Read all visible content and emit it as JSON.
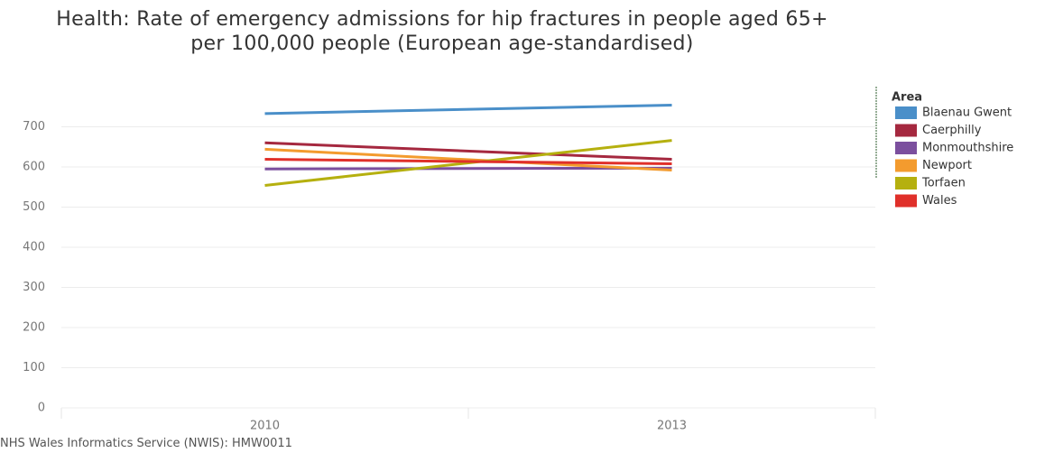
{
  "chart_data": {
    "type": "line",
    "title": "Health: Rate of emergency admissions for hip fractures in people aged 65+ per 100,000 people (European age-standardised)",
    "source": "NHS Wales Informatics Service (NWIS): HMW0011",
    "legend_title": "Area",
    "x": [
      2010,
      2013
    ],
    "xlim": [
      2008.5,
      2014.5
    ],
    "xticks": [
      2010,
      2013
    ],
    "ylim": [
      0,
      800
    ],
    "yticks": [
      0,
      100,
      200,
      300,
      400,
      500,
      600,
      700
    ],
    "grid": true,
    "legend": "right",
    "series": [
      {
        "name": "Blaenau Gwent",
        "color": "#4a8fc9",
        "values": [
          733,
          754
        ]
      },
      {
        "name": "Caerphilly",
        "color": "#a5283f",
        "values": [
          660,
          619
        ]
      },
      {
        "name": "Monmouthshire",
        "color": "#7b4f9e",
        "values": [
          595,
          597
        ]
      },
      {
        "name": "Newport",
        "color": "#f39b2e",
        "values": [
          644,
          592
        ]
      },
      {
        "name": "Torfaen",
        "color": "#b5b00f",
        "values": [
          554,
          666
        ]
      },
      {
        "name": "Wales",
        "color": "#e0302a",
        "values": [
          619,
          608
        ]
      }
    ]
  }
}
